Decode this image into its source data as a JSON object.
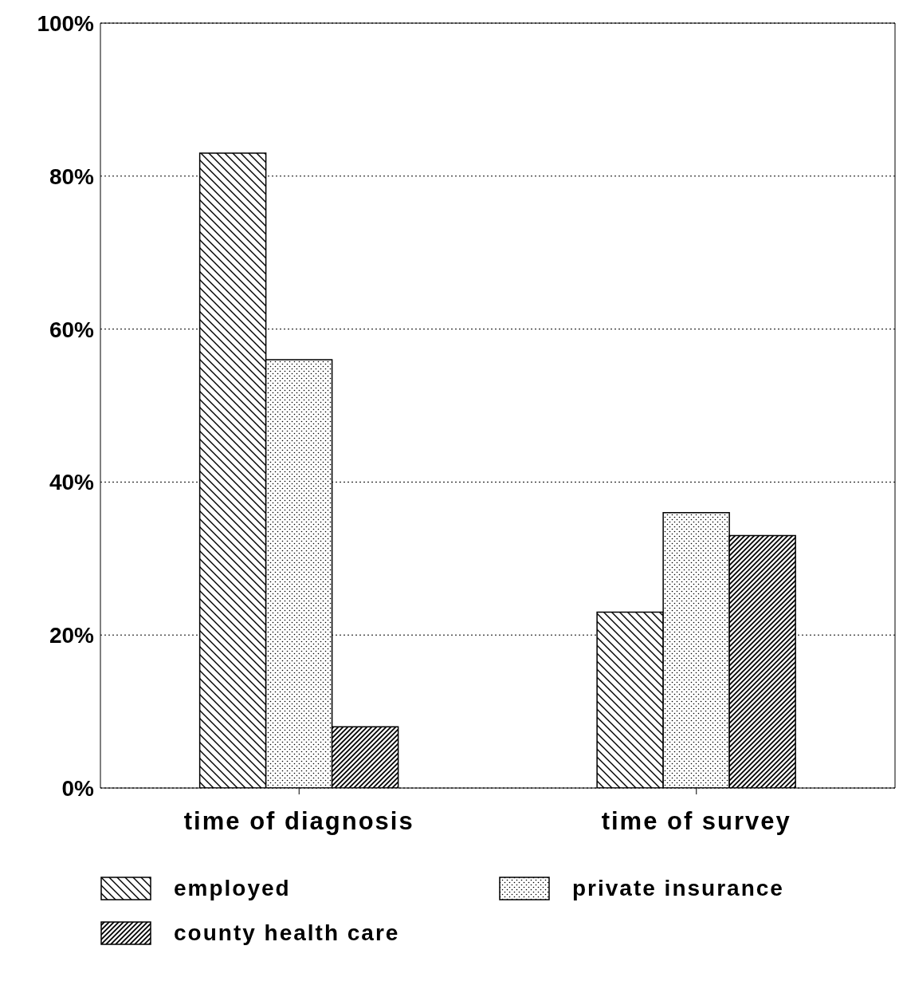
{
  "chart_data": {
    "type": "bar",
    "categories": [
      "time of diagnosis",
      "time of survey"
    ],
    "series": [
      {
        "name": "employed",
        "color": "#000000",
        "values": [
          83,
          23
        ]
      },
      {
        "name": "private insurance",
        "color": "#000000",
        "values": [
          56,
          36
        ]
      },
      {
        "name": "county health care",
        "color": "#000000",
        "values": [
          8,
          33
        ]
      }
    ],
    "ylim": [
      0,
      100
    ],
    "yticks": [
      {
        "value": 0,
        "label": "0%"
      },
      {
        "value": 20,
        "label": "20%"
      },
      {
        "value": 40,
        "label": "40%"
      },
      {
        "value": 60,
        "label": "60%"
      },
      {
        "value": 80,
        "label": "80%"
      },
      {
        "value": 100,
        "label": "100%"
      }
    ],
    "grid": "y",
    "legend": "bottom"
  }
}
